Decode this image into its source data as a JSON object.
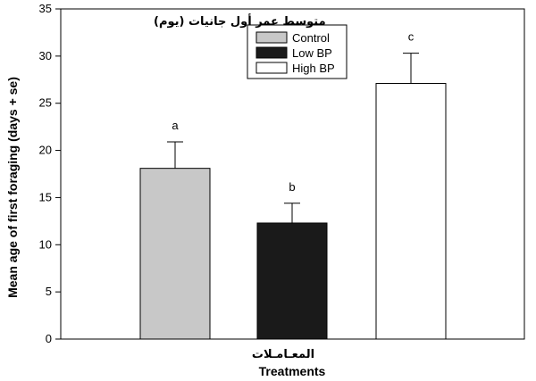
{
  "chart_data": {
    "type": "bar",
    "categories": [
      "Control",
      "Low BP",
      "High BP"
    ],
    "values": [
      18.1,
      12.3,
      27.1
    ],
    "errors": [
      2.8,
      2.1,
      3.2
    ],
    "bar_labels": [
      "a",
      "b",
      "c"
    ],
    "colors": [
      "#c8c8c8",
      "#1a1a1a",
      "#ffffff"
    ],
    "ylabel": "Mean age of first foraging (days + se)",
    "ylabel_arabic": "متوسط عمر أول جانيات (يوم)",
    "xlabel": "Treatments",
    "xlabel_arabic": "المعـامـلات",
    "ylim": [
      0,
      35
    ],
    "yticks": [
      0,
      5,
      10,
      15,
      20,
      25,
      30,
      35
    ],
    "grid": false,
    "legend_position": "top-center",
    "legend": [
      "Control",
      "Low BP",
      "High BP"
    ]
  }
}
